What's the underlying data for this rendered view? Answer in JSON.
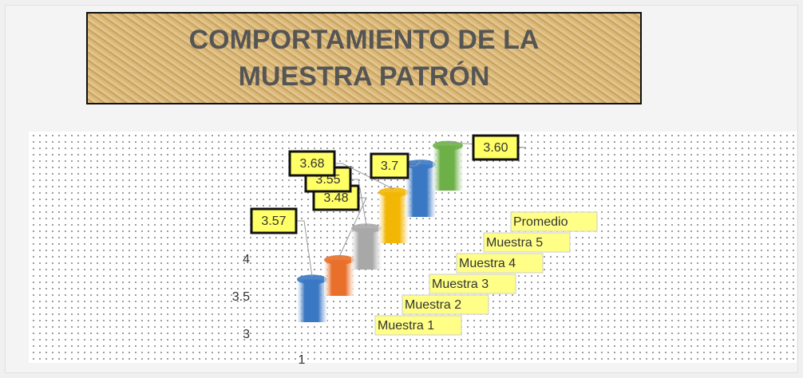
{
  "chart_data": {
    "type": "cylinder3d",
    "title": "COMPORTAMIENTO DE LA MUESTRA PATRÓN",
    "categories": [
      "Muestra 1",
      "Muestra 2",
      "Muestra 3",
      "Muestra 4",
      "Muestra 5",
      "Promedio"
    ],
    "values": [
      3.57,
      3.48,
      3.55,
      3.68,
      3.7,
      3.6
    ],
    "value_labels": [
      "3.57",
      "3.48",
      "3.55",
      "3.68",
      "3.7",
      "3.60"
    ],
    "colors": [
      "#3b78c4",
      "#e8702a",
      "#a8a8a8",
      "#f2b705",
      "#3b78c4",
      "#6db048"
    ],
    "x_categories": [
      "1"
    ],
    "ylim": [
      3,
      4
    ],
    "yticks": [
      3,
      3.5,
      4
    ]
  }
}
